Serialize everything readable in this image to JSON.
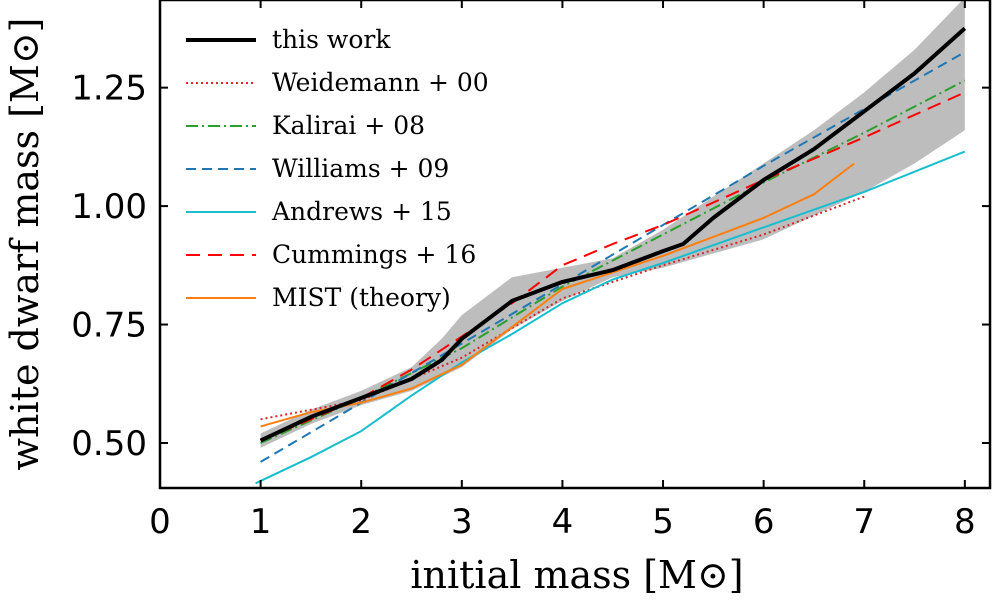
{
  "chart_data": {
    "type": "line",
    "xlabel": "initial mass",
    "xlabel_unit": "[M⊙]",
    "ylabel": "white dwarf mass",
    "ylabel_unit": "[M⊙]",
    "xlim": [
      0,
      8.25
    ],
    "ylim": [
      0.405,
      1.435
    ],
    "xticks": [
      0,
      1,
      2,
      3,
      4,
      5,
      6,
      7,
      8
    ],
    "xtick_labels": [
      "0",
      "1",
      "2",
      "3",
      "4",
      "5",
      "6",
      "7",
      "8"
    ],
    "yticks": [
      0.5,
      0.75,
      1.0,
      1.25
    ],
    "ytick_labels": [
      "0.50",
      "0.75",
      "1.00",
      "1.25"
    ],
    "grid": false,
    "legend_position": "top-left",
    "uncertainty_band": {
      "color": "#bdbdbd",
      "x": [
        1.0,
        1.5,
        2.0,
        2.5,
        2.8,
        3.0,
        3.5,
        4.0,
        4.5,
        5.0,
        5.5,
        6.0,
        6.5,
        7.0,
        7.5,
        8.0
      ],
      "upper": [
        0.52,
        0.57,
        0.61,
        0.66,
        0.72,
        0.77,
        0.85,
        0.87,
        0.89,
        0.95,
        1.02,
        1.09,
        1.16,
        1.24,
        1.33,
        1.44
      ],
      "lower": [
        0.49,
        0.54,
        0.58,
        0.61,
        0.64,
        0.66,
        0.74,
        0.8,
        0.85,
        0.87,
        0.9,
        0.93,
        0.98,
        1.03,
        1.09,
        1.16
      ]
    },
    "series": [
      {
        "name": "this work",
        "color": "#000000",
        "width": 4,
        "dash": "",
        "x": [
          1.0,
          1.5,
          2.0,
          2.5,
          2.8,
          3.0,
          3.5,
          4.0,
          4.5,
          5.0,
          5.2,
          5.5,
          6.0,
          6.5,
          7.0,
          7.5,
          8.0
        ],
        "y": [
          0.505,
          0.555,
          0.595,
          0.635,
          0.675,
          0.72,
          0.8,
          0.84,
          0.865,
          0.905,
          0.92,
          0.975,
          1.055,
          1.12,
          1.2,
          1.28,
          1.375
        ]
      },
      {
        "name": "Weidemann + 00",
        "color": "#d62728",
        "width": 2,
        "dash": "2,3",
        "x": [
          1.0,
          2.0,
          3.0,
          4.0,
          5.0,
          6.0,
          7.0
        ],
        "y": [
          0.55,
          0.59,
          0.68,
          0.805,
          0.875,
          0.94,
          1.02
        ]
      },
      {
        "name": "Kalirai + 08",
        "color": "#2ca02c",
        "width": 2,
        "dash": "12,4,2,4",
        "x": [
          1.0,
          2.0,
          3.0,
          4.0,
          5.0,
          6.0,
          7.0,
          8.0
        ],
        "y": [
          0.5,
          0.595,
          0.7,
          0.83,
          0.94,
          1.05,
          1.155,
          1.265
        ]
      },
      {
        "name": "Williams + 09",
        "color": "#1f77b4",
        "width": 2,
        "dash": "10,6",
        "x": [
          1.0,
          2.0,
          3.0,
          4.0,
          5.0,
          6.0,
          7.0,
          8.0
        ],
        "y": [
          0.46,
          0.585,
          0.71,
          0.835,
          0.96,
          1.085,
          1.205,
          1.325
        ]
      },
      {
        "name": "Andrews + 15",
        "color": "#17becf",
        "width": 2,
        "dash": "",
        "x": [
          0.95,
          1.5,
          2.0,
          2.5,
          3.0,
          3.5,
          4.0,
          4.5,
          5.0,
          6.0,
          7.0,
          8.0
        ],
        "y": [
          0.415,
          0.47,
          0.525,
          0.6,
          0.67,
          0.73,
          0.795,
          0.845,
          0.88,
          0.955,
          1.03,
          1.115
        ]
      },
      {
        "name": "Cummings + 16",
        "color": "#ff0000",
        "width": 2,
        "dash": "14,8",
        "x": [
          1.0,
          2.0,
          2.5,
          3.0,
          3.5,
          4.0,
          4.5,
          5.0,
          6.0,
          7.0,
          8.0
        ],
        "y": [
          0.505,
          0.595,
          0.655,
          0.725,
          0.795,
          0.875,
          0.92,
          0.96,
          1.055,
          1.145,
          1.24
        ]
      },
      {
        "name": "MIST (theory)",
        "color": "#ff7f0e",
        "width": 2,
        "dash": "",
        "x": [
          1.0,
          1.5,
          2.0,
          2.5,
          3.0,
          3.5,
          4.0,
          4.5,
          5.0,
          5.5,
          6.0,
          6.5,
          6.9
        ],
        "y": [
          0.535,
          0.565,
          0.585,
          0.615,
          0.665,
          0.745,
          0.825,
          0.86,
          0.895,
          0.935,
          0.975,
          1.025,
          1.09
        ]
      }
    ]
  }
}
